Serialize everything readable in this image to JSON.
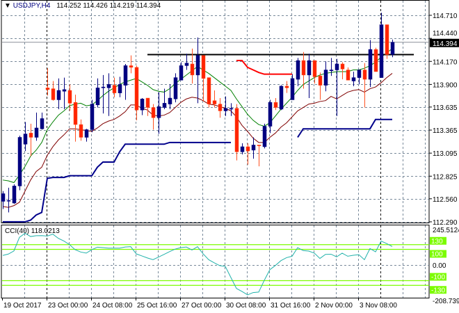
{
  "header": {
    "symbol": "USDJPY,H4",
    "ohlc": "114.252 114.426 114.219 114.394",
    "icon": "triangle-down-icon"
  },
  "chart_data": {
    "type": "candlestick",
    "price_axis": {
      "ticks": [
        "114.710",
        "114.440",
        "114.170",
        "113.900",
        "113.635",
        "113.365",
        "113.095",
        "112.825",
        "112.560",
        "112.290"
      ],
      "current_price": "114.394"
    },
    "time_axis": {
      "labels": [
        {
          "text": "19 Oct 2017",
          "index": 0
        },
        {
          "text": "23 Oct 00:00",
          "index": 8
        },
        {
          "text": "24 Oct 08:00",
          "index": 16
        },
        {
          "text": "25 Oct 16:00",
          "index": 24
        },
        {
          "text": "27 Oct 00:00",
          "index": 32
        },
        {
          "text": "30 Oct 08:00",
          "index": 40
        },
        {
          "text": "31 Oct 16:00",
          "index": 48
        },
        {
          "text": "2 Nov 00:00",
          "index": 56
        },
        {
          "text": "3 Nov 08:00",
          "index": 64
        }
      ]
    },
    "candles_ohlc": [
      [
        112.53,
        112.65,
        112.44,
        112.62
      ],
      [
        112.54,
        112.69,
        112.4,
        112.54
      ],
      [
        112.51,
        112.73,
        112.5,
        112.71
      ],
      [
        112.71,
        113.3,
        112.66,
        113.28
      ],
      [
        113.2,
        113.46,
        113.12,
        113.32
      ],
      [
        113.33,
        113.44,
        113.06,
        113.28
      ],
      [
        113.28,
        113.57,
        113.24,
        113.39
      ],
      [
        113.38,
        113.57,
        113.37,
        113.5
      ],
      [
        113.86,
        114.09,
        113.77,
        113.84
      ],
      [
        113.85,
        113.94,
        113.71,
        113.72
      ],
      [
        113.72,
        113.97,
        113.61,
        113.83
      ],
      [
        113.82,
        113.98,
        113.61,
        113.84
      ],
      [
        113.83,
        113.9,
        113.59,
        113.68
      ],
      [
        113.69,
        113.78,
        113.23,
        113.43
      ],
      [
        113.43,
        113.49,
        113.24,
        113.28
      ],
      [
        113.28,
        113.38,
        113.23,
        113.37
      ],
      [
        113.37,
        113.72,
        113.34,
        113.67
      ],
      [
        113.66,
        113.97,
        113.63,
        113.86
      ],
      [
        113.86,
        114.01,
        113.56,
        113.87
      ],
      [
        113.86,
        114.03,
        113.53,
        113.9
      ],
      [
        113.89,
        113.98,
        113.75,
        113.8
      ],
      [
        113.8,
        113.99,
        113.75,
        113.9
      ],
      [
        113.89,
        114.14,
        113.72,
        114.12
      ],
      [
        114.12,
        114.24,
        114.03,
        114.1
      ],
      [
        114.1,
        114.12,
        113.48,
        113.6
      ],
      [
        113.6,
        113.74,
        113.54,
        113.73
      ],
      [
        113.74,
        113.74,
        113.53,
        113.63
      ],
      [
        113.63,
        113.67,
        113.37,
        113.51
      ],
      [
        113.51,
        113.81,
        113.32,
        113.64
      ],
      [
        113.63,
        113.85,
        113.61,
        113.68
      ],
      [
        113.67,
        113.9,
        113.61,
        113.74
      ],
      [
        113.73,
        114.03,
        113.69,
        113.98
      ],
      [
        113.95,
        114.16,
        113.95,
        114.12
      ],
      [
        114.12,
        114.26,
        114.07,
        114.15
      ],
      [
        114.14,
        114.32,
        113.91,
        114.01
      ],
      [
        114.01,
        114.45,
        113.68,
        114.24
      ],
      [
        114.24,
        114.24,
        113.7,
        113.97
      ],
      [
        113.98,
        113.98,
        113.63,
        113.67
      ],
      [
        113.71,
        113.83,
        113.63,
        113.67
      ],
      [
        113.67,
        113.74,
        113.51,
        113.59
      ],
      [
        113.59,
        113.76,
        113.53,
        113.62
      ],
      [
        113.61,
        113.68,
        113.53,
        113.62
      ],
      [
        113.62,
        113.67,
        113.01,
        113.11
      ],
      [
        113.11,
        113.21,
        113.08,
        113.17
      ],
      [
        113.17,
        113.21,
        112.96,
        113.12
      ],
      [
        113.13,
        113.28,
        113.03,
        113.19
      ],
      [
        113.19,
        113.19,
        112.94,
        113.18
      ],
      [
        113.17,
        113.44,
        113.15,
        113.41
      ],
      [
        113.41,
        113.72,
        113.33,
        113.69
      ],
      [
        113.69,
        113.74,
        113.6,
        113.63
      ],
      [
        113.61,
        113.89,
        113.6,
        113.88
      ],
      [
        113.88,
        113.94,
        113.8,
        113.86
      ],
      [
        113.72,
        114.02,
        113.72,
        113.97
      ],
      [
        113.96,
        114.21,
        113.88,
        114.18
      ],
      [
        114.18,
        114.28,
        113.85,
        114.01
      ],
      [
        114.01,
        114.26,
        113.74,
        114.18
      ],
      [
        114.18,
        114.18,
        113.91,
        113.99
      ],
      [
        114.0,
        114.04,
        113.72,
        113.89
      ],
      [
        113.89,
        114.17,
        113.82,
        114.07
      ],
      [
        114.06,
        114.21,
        114.0,
        114.07
      ],
      [
        114.07,
        114.2,
        113.53,
        114.14
      ],
      [
        114.14,
        114.16,
        113.96,
        114.08
      ],
      [
        114.07,
        114.1,
        113.95,
        113.95
      ],
      [
        113.94,
        114.05,
        113.88,
        113.98
      ],
      [
        113.98,
        114.07,
        113.9,
        114.07
      ],
      [
        114.07,
        114.15,
        113.63,
        113.96
      ],
      [
        113.96,
        114.42,
        113.87,
        114.31
      ],
      [
        114.31,
        114.33,
        114.05,
        114.05
      ],
      [
        113.98,
        114.74,
        113.98,
        114.6
      ],
      [
        114.6,
        114.6,
        114.2,
        114.25
      ],
      [
        114.252,
        114.426,
        114.219,
        114.394
      ]
    ],
    "ma_green": [
      112.78,
      112.77,
      112.75,
      112.84,
      112.94,
      113.06,
      113.13,
      113.22,
      113.37,
      113.46,
      113.54,
      113.59,
      113.65,
      113.67,
      113.68,
      113.65,
      113.66,
      113.71,
      113.77,
      113.82,
      113.86,
      113.9,
      113.93,
      113.95,
      113.97,
      113.93,
      113.89,
      113.84,
      113.82,
      113.81,
      113.85,
      113.91,
      113.96,
      114.01,
      114.06,
      114.11,
      114.07,
      114.03,
      113.98,
      113.93,
      113.88,
      113.83,
      113.73,
      113.64,
      113.55,
      113.48,
      113.43,
      113.41,
      113.45,
      113.53,
      113.61,
      113.68,
      113.75,
      113.83,
      113.9,
      113.94,
      113.98,
      114.01,
      114.03,
      114.04,
      114.05,
      114.05,
      114.05,
      114.07,
      114.07,
      114.09,
      114.12,
      114.16,
      114.22,
      114.27,
      114.32
    ],
    "ma_darkred": [
      112.47,
      112.46,
      112.48,
      112.52,
      112.65,
      112.78,
      112.88,
      112.93,
      113.07,
      113.17,
      113.25,
      113.31,
      113.38,
      113.38,
      113.37,
      113.36,
      113.35,
      113.39,
      113.44,
      113.47,
      113.49,
      113.53,
      113.58,
      113.66,
      113.66,
      113.62,
      113.6,
      113.54,
      113.53,
      113.54,
      113.57,
      113.63,
      113.69,
      113.73,
      113.75,
      113.74,
      113.71,
      113.67,
      113.66,
      113.64,
      113.62,
      113.59,
      113.52,
      113.42,
      113.35,
      113.27,
      113.22,
      113.22,
      113.28,
      113.33,
      113.4,
      113.45,
      113.52,
      113.59,
      113.63,
      113.67,
      113.68,
      113.7,
      113.71,
      113.76,
      113.73,
      113.77,
      113.81,
      113.83,
      113.84,
      113.81,
      113.85,
      113.87,
      113.92,
      113.98,
      114.03
    ],
    "support_step": [
      112.29,
      112.29,
      112.29,
      112.29,
      112.29,
      112.31,
      112.37,
      112.4,
      112.8,
      112.81,
      112.81,
      112.81,
      112.83,
      112.83,
      112.83,
      112.83,
      112.83,
      112.93,
      112.99,
      112.99,
      112.99,
      113.11,
      113.2,
      113.2,
      113.2,
      113.2,
      113.2,
      113.2,
      113.2,
      113.2,
      113.22,
      113.22,
      113.22,
      113.22,
      113.22,
      113.22,
      113.22,
      113.22,
      113.22,
      113.22,
      113.22,
      113.22,
      null,
      null,
      null,
      null,
      null,
      null,
      null,
      null,
      null,
      null,
      null,
      113.28,
      113.38,
      113.38,
      113.38,
      113.38,
      113.38,
      113.38,
      113.38,
      113.38,
      113.38,
      113.38,
      113.38,
      113.38,
      113.38,
      113.49,
      113.49,
      113.49,
      113.49
    ],
    "resistance_step": [
      null,
      null,
      null,
      null,
      null,
      null,
      null,
      null,
      null,
      null,
      null,
      null,
      null,
      null,
      null,
      null,
      null,
      null,
      null,
      null,
      null,
      null,
      null,
      null,
      null,
      null,
      null,
      null,
      null,
      null,
      null,
      null,
      null,
      null,
      null,
      null,
      null,
      null,
      null,
      null,
      null,
      null,
      114.18,
      114.18,
      114.1,
      114.07,
      114.04,
      114.02,
      114.02,
      114.02,
      114.02,
      114.02,
      114.02,
      null,
      null,
      null,
      null,
      null,
      null,
      null,
      null,
      null,
      null,
      null,
      null,
      null,
      null,
      null,
      null,
      null,
      null
    ],
    "horizontal_level": {
      "price": 114.25,
      "from_index": 26
    },
    "cci": {
      "label": "CCI(40) 118.0213",
      "axis_max": "245.5124",
      "axis_min": "-208.739",
      "zero_label": "0.00",
      "levels": [
        {
          "value": 130,
          "label": "130"
        },
        {
          "value": 100,
          "label": "100"
        },
        {
          "value": -100,
          "label": "-100"
        },
        {
          "value": -130,
          "label": "-130"
        }
      ],
      "values": [
        61,
        70,
        90,
        177,
        203,
        182,
        187,
        188,
        185,
        197,
        170,
        153,
        130,
        98,
        83,
        76,
        98,
        114,
        111,
        108,
        108,
        108,
        115,
        117,
        71,
        58,
        45,
        34,
        51,
        68,
        86,
        102,
        111,
        115,
        96,
        117,
        72,
        34,
        14,
        -4,
        -9,
        -80,
        -150,
        -169,
        -191,
        -176,
        -173,
        -98,
        -30,
        -3,
        28,
        47,
        56,
        111,
        92,
        89,
        76,
        42,
        68,
        69,
        52,
        76,
        56,
        62,
        66,
        34,
        105,
        84,
        153,
        137,
        118
      ]
    },
    "colors": {
      "bull": "#000080",
      "bear": "#ff2400",
      "bear_wick": "#ff5020",
      "ma_green": "#008000",
      "ma_darkred": "#800000",
      "support_step": "#00008b",
      "resistance_step": "#ff0000",
      "level": "#000000",
      "cci_line": "#20b2aa",
      "cci_levels": "#7cfc00",
      "grid": "#778899"
    },
    "grid": true
  }
}
